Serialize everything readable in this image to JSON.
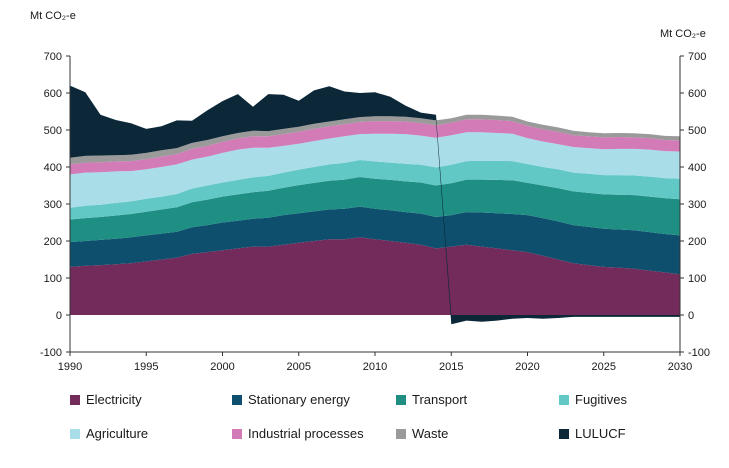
{
  "chart_data": {
    "type": "area",
    "stacked": true,
    "ylabel_left": "Mt CO₂-e",
    "ylabel_right": "Mt CO₂-e",
    "ylim": [
      -100,
      700
    ],
    "yticks": [
      -100,
      0,
      100,
      200,
      300,
      400,
      500,
      600,
      700
    ],
    "xlim": [
      1990,
      2030
    ],
    "xticks": [
      1990,
      1995,
      2000,
      2005,
      2010,
      2015,
      2020,
      2025,
      2030
    ],
    "grid": false,
    "legend_position": "bottom",
    "x": [
      1990,
      1991,
      1992,
      1993,
      1994,
      1995,
      1996,
      1997,
      1998,
      1999,
      2000,
      2001,
      2002,
      2003,
      2004,
      2005,
      2006,
      2007,
      2008,
      2009,
      2010,
      2011,
      2012,
      2013,
      2014,
      2015,
      2016,
      2017,
      2018,
      2019,
      2020,
      2021,
      2022,
      2023,
      2024,
      2025,
      2026,
      2027,
      2028,
      2029,
      2030
    ],
    "series": [
      {
        "name": "Electricity",
        "color": "#722b5b",
        "values": [
          130,
          133,
          135,
          137,
          140,
          145,
          150,
          155,
          165,
          170,
          175,
          180,
          185,
          185,
          190,
          195,
          200,
          205,
          205,
          210,
          205,
          200,
          195,
          190,
          180,
          185,
          190,
          185,
          180,
          175,
          170,
          160,
          150,
          140,
          135,
          130,
          128,
          125,
          120,
          115,
          110
        ]
      },
      {
        "name": "Stationary energy",
        "color": "#0e4f6e",
        "values": [
          67,
          67,
          68,
          69,
          70,
          70,
          70,
          70,
          72,
          73,
          75,
          75,
          75,
          78,
          80,
          80,
          80,
          80,
          82,
          83,
          82,
          83,
          83,
          84,
          85,
          85,
          88,
          92,
          95,
          98,
          100,
          102,
          103,
          103,
          103,
          103,
          103,
          104,
          104,
          104,
          105
        ]
      },
      {
        "name": "Transport",
        "color": "#1f8f84",
        "values": [
          61,
          62,
          62,
          63,
          63,
          64,
          65,
          66,
          68,
          69,
          70,
          71,
          72,
          73,
          74,
          76,
          77,
          78,
          79,
          80,
          81,
          82,
          83,
          84,
          85,
          86,
          88,
          89,
          90,
          91,
          87,
          88,
          90,
          91,
          92,
          93,
          94,
          95,
          96,
          97,
          98
        ]
      },
      {
        "name": "Fugitives",
        "color": "#62c8c6",
        "values": [
          32,
          33,
          33,
          34,
          34,
          35,
          35,
          36,
          37,
          38,
          38,
          39,
          40,
          40,
          41,
          42,
          43,
          44,
          45,
          46,
          47,
          47,
          48,
          48,
          49,
          50,
          50,
          51,
          52,
          52,
          51,
          50,
          51,
          51,
          52,
          52,
          53,
          53,
          54,
          54,
          55
        ]
      },
      {
        "name": "Agriculture",
        "color": "#a9dde8",
        "values": [
          90,
          90,
          88,
          85,
          82,
          80,
          80,
          80,
          78,
          78,
          80,
          82,
          80,
          76,
          72,
          70,
          70,
          70,
          72,
          70,
          75,
          78,
          80,
          79,
          80,
          80,
          78,
          77,
          75,
          74,
          70,
          69,
          68,
          69,
          69,
          70,
          71,
          72,
          73,
          73,
          74
        ]
      },
      {
        "name": "Industrial processes",
        "color": "#d27bb7",
        "values": [
          27,
          27,
          27,
          27,
          27,
          27,
          28,
          28,
          29,
          29,
          30,
          30,
          31,
          31,
          32,
          32,
          33,
          33,
          33,
          33,
          34,
          34,
          34,
          34,
          34,
          34,
          35,
          35,
          35,
          34,
          33,
          33,
          33,
          32,
          32,
          32,
          32,
          31,
          31,
          30,
          30
        ]
      },
      {
        "name": "Waste",
        "color": "#9a9a9a",
        "values": [
          18,
          18,
          18,
          17,
          17,
          17,
          17,
          16,
          16,
          16,
          15,
          15,
          15,
          14,
          14,
          14,
          14,
          13,
          13,
          13,
          13,
          13,
          13,
          13,
          13,
          12,
          12,
          12,
          12,
          12,
          12,
          12,
          12,
          12,
          11,
          11,
          11,
          11,
          11,
          11,
          11
        ]
      },
      {
        "name": "LULUCF",
        "color": "#0b2738",
        "values": [
          195,
          172,
          110,
          95,
          85,
          65,
          65,
          75,
          60,
          80,
          95,
          105,
          65,
          100,
          92,
          70,
          90,
          95,
          75,
          65,
          65,
          53,
          30,
          15,
          15,
          -25,
          -15,
          -18,
          -15,
          -10,
          -8,
          -10,
          -8,
          -5,
          -5,
          -5,
          -5,
          -5,
          -5,
          -5,
          -5
        ]
      }
    ]
  }
}
